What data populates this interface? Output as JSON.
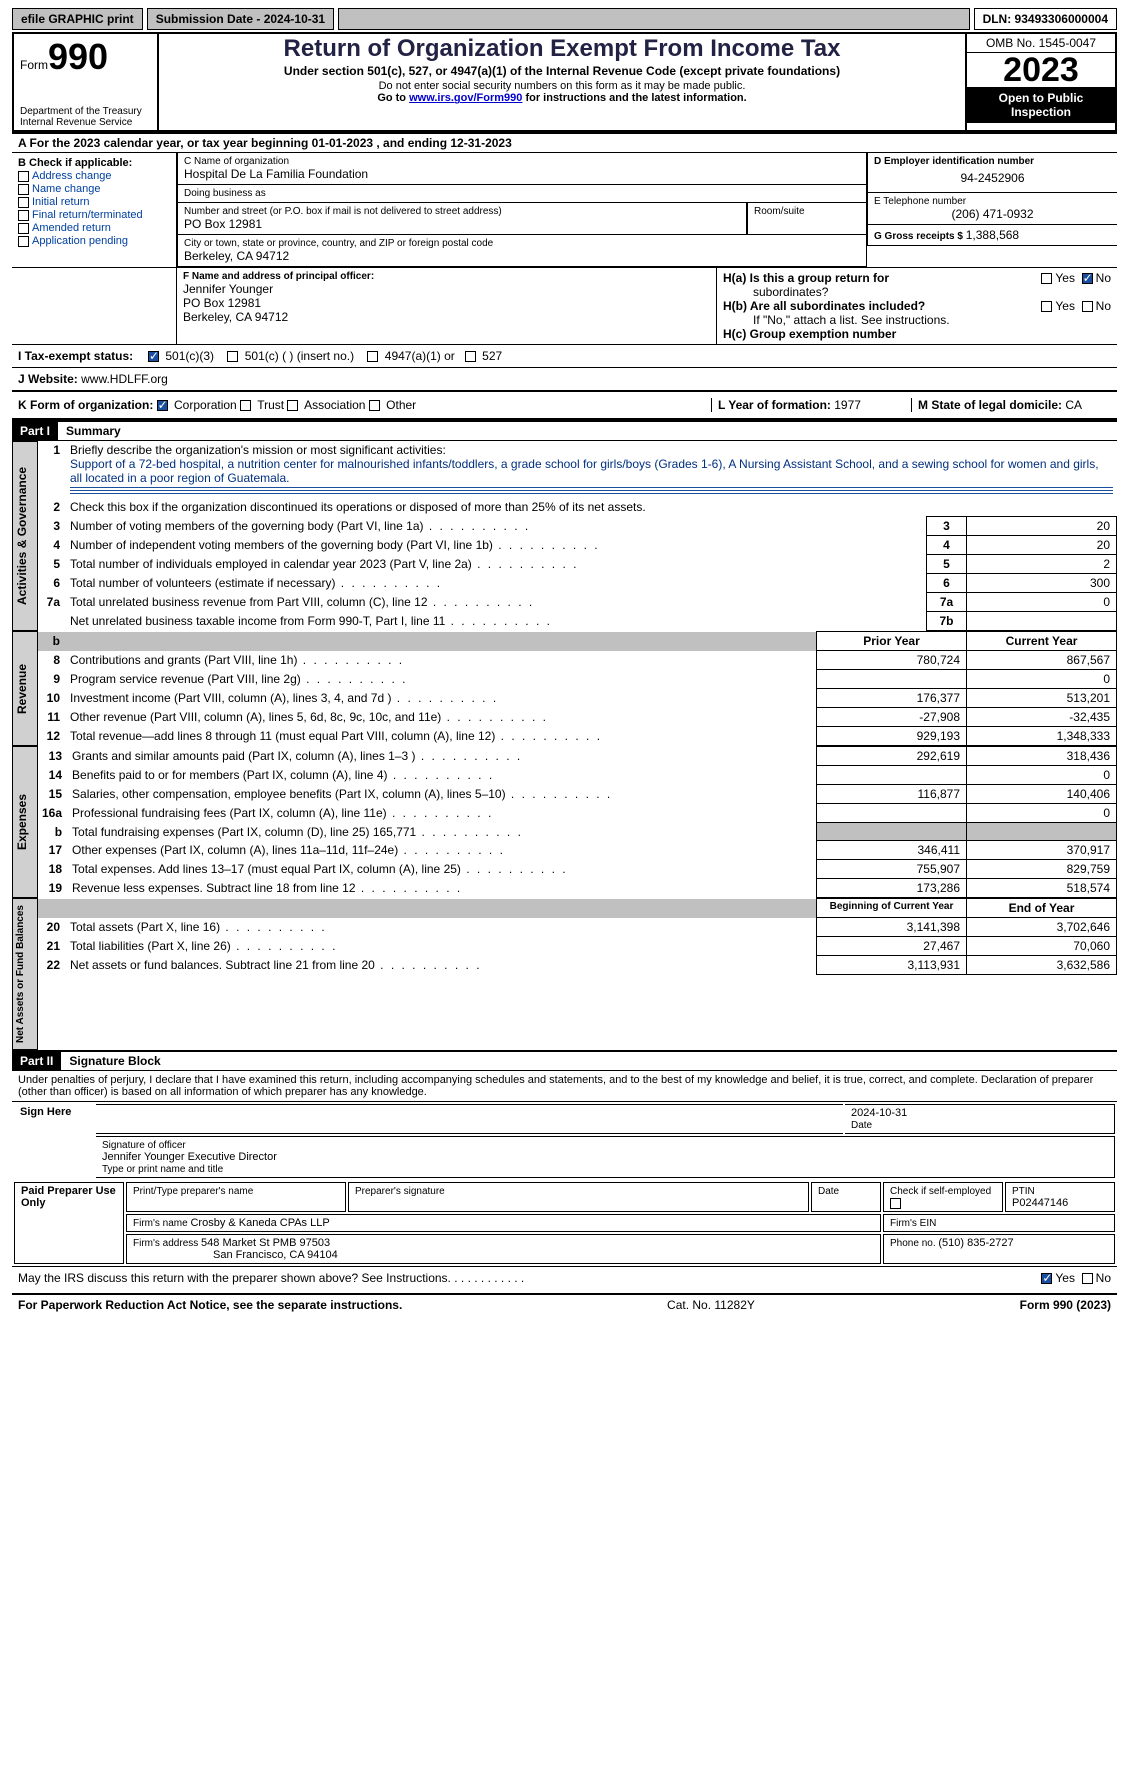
{
  "topbar": {
    "efile": "efile GRAPHIC print",
    "submission": "Submission Date - 2024-10-31",
    "dln": "DLN: 93493306000004"
  },
  "header": {
    "form_label": "Form",
    "form_no": "990",
    "dept": "Department of the Treasury",
    "irs": "Internal Revenue Service",
    "title": "Return of Organization Exempt From Income Tax",
    "subtitle": "Under section 501(c), 527, or 4947(a)(1) of the Internal Revenue Code (except private foundations)",
    "note1": "Do not enter social security numbers on this form as it may be made public.",
    "note2_pre": "Go to ",
    "note2_link": "www.irs.gov/Form990",
    "note2_post": " for instructions and the latest information.",
    "omb": "OMB No. 1545-0047",
    "year": "2023",
    "open1": "Open to Public",
    "open2": "Inspection"
  },
  "calyear": "A   For the 2023 calendar year, or tax year beginning 01-01-2023    , and ending 12-31-2023",
  "boxB": {
    "hdr": "B Check if applicable:",
    "opts": [
      "Address change",
      "Name change",
      "Initial return",
      "Final return/terminated",
      "Amended return",
      "Application pending"
    ]
  },
  "boxC": {
    "lbl_name": "C Name of organization",
    "org": "Hospital De La Familia Foundation",
    "lbl_dba": "Doing business as",
    "dba": "",
    "lbl_street": "Number and street (or P.O. box if mail is not delivered to street address)",
    "street": "PO Box 12981",
    "lbl_room": "Room/suite",
    "lbl_city": "City or town, state or province, country, and ZIP or foreign postal code",
    "city": "Berkeley, CA  94712"
  },
  "boxD": {
    "lbl": "D Employer identification number",
    "val": "94-2452906"
  },
  "boxE": {
    "lbl": "E Telephone number",
    "val": "(206) 471-0932"
  },
  "boxG": {
    "lbl": "G Gross receipts $ ",
    "val": "1,388,568"
  },
  "boxF": {
    "lbl": "F  Name and address of principal officer:",
    "l1": "Jennifer Younger",
    "l2": "PO Box 12981",
    "l3": "Berkeley, CA  94712"
  },
  "boxH": {
    "a": "H(a)  Is this a group return for",
    "a2": "subordinates?",
    "b": "H(b)  Are all subordinates included?",
    "b2": "If \"No,\" attach a list. See instructions.",
    "c": "H(c)  Group exemption number  "
  },
  "boxI": {
    "lbl": "I    Tax-exempt status:",
    "o1": "501(c)(3)",
    "o2": "501(c) (  ) (insert no.)",
    "o3": "4947(a)(1) or",
    "o4": "527"
  },
  "boxJ": {
    "lbl": "J    Website: ",
    "val": "www.HDLFF.org"
  },
  "boxK": {
    "lbl": "K Form of organization:",
    "o1": "Corporation",
    "o2": "Trust",
    "o3": "Association",
    "o4": "Other"
  },
  "boxL": {
    "lbl": "L Year of formation: ",
    "val": "1977"
  },
  "boxM": {
    "lbl": "M State of legal domicile: ",
    "val": "CA"
  },
  "part1": {
    "bar": "Part I",
    "title": "Summary"
  },
  "summary": {
    "side_ag": "Activities & Governance",
    "side_rev": "Revenue",
    "side_exp": "Expenses",
    "side_na": "Net Assets or Fund Balances",
    "l1_lbl": "Briefly describe the organization's mission or most significant activities:",
    "l1_txt": "Support of a 72-bed hospital, a nutrition center for malnourished infants/toddlers, a grade school for girls/boys (Grades 1-6), A Nursing Assistant School, and a sewing school for women and girls, all located in a poor region of Guatemala.",
    "l2": "Check this box      if the organization discontinued its operations or disposed of more than 25% of its net assets.",
    "rows_ag": [
      {
        "n": "3",
        "t": "Number of voting members of the governing body (Part VI, line 1a)",
        "rn": "3",
        "v": "20"
      },
      {
        "n": "4",
        "t": "Number of independent voting members of the governing body (Part VI, line 1b)",
        "rn": "4",
        "v": "20"
      },
      {
        "n": "5",
        "t": "Total number of individuals employed in calendar year 2023 (Part V, line 2a)",
        "rn": "5",
        "v": "2"
      },
      {
        "n": "6",
        "t": "Total number of volunteers (estimate if necessary)",
        "rn": "6",
        "v": "300"
      },
      {
        "n": "7a",
        "t": "Total unrelated business revenue from Part VIII, column (C), line 12",
        "rn": "7a",
        "v": "0"
      },
      {
        "n": "",
        "t": "Net unrelated business taxable income from Form 990-T, Part I, line 11",
        "rn": "7b",
        "v": ""
      }
    ],
    "col_prior": "Prior Year",
    "col_curr": "Current Year",
    "rows_rev": [
      {
        "n": "8",
        "t": "Contributions and grants (Part VIII, line 1h)",
        "p": "780,724",
        "c": "867,567"
      },
      {
        "n": "9",
        "t": "Program service revenue (Part VIII, line 2g)",
        "p": "",
        "c": "0"
      },
      {
        "n": "10",
        "t": "Investment income (Part VIII, column (A), lines 3, 4, and 7d )",
        "p": "176,377",
        "c": "513,201"
      },
      {
        "n": "11",
        "t": "Other revenue (Part VIII, column (A), lines 5, 6d, 8c, 9c, 10c, and 11e)",
        "p": "-27,908",
        "c": "-32,435"
      },
      {
        "n": "12",
        "t": "Total revenue—add lines 8 through 11 (must equal Part VIII, column (A), line 12)",
        "p": "929,193",
        "c": "1,348,333"
      }
    ],
    "rows_exp": [
      {
        "n": "13",
        "t": "Grants and similar amounts paid (Part IX, column (A), lines 1–3 )",
        "p": "292,619",
        "c": "318,436"
      },
      {
        "n": "14",
        "t": "Benefits paid to or for members (Part IX, column (A), line 4)",
        "p": "",
        "c": "0"
      },
      {
        "n": "15",
        "t": "Salaries, other compensation, employee benefits (Part IX, column (A), lines 5–10)",
        "p": "116,877",
        "c": "140,406"
      },
      {
        "n": "16a",
        "t": "Professional fundraising fees (Part IX, column (A), line 11e)",
        "p": "",
        "c": "0"
      },
      {
        "n": "b",
        "t": "Total fundraising expenses (Part IX, column (D), line 25) 165,771",
        "p": "GREY",
        "c": "GREY"
      },
      {
        "n": "17",
        "t": "Other expenses (Part IX, column (A), lines 11a–11d, 11f–24e)",
        "p": "346,411",
        "c": "370,917"
      },
      {
        "n": "18",
        "t": "Total expenses. Add lines 13–17 (must equal Part IX, column (A), line 25)",
        "p": "755,907",
        "c": "829,759"
      },
      {
        "n": "19",
        "t": "Revenue less expenses. Subtract line 18 from line 12",
        "p": "173,286",
        "c": "518,574"
      }
    ],
    "col_beg": "Beginning of Current Year",
    "col_end": "End of Year",
    "rows_na": [
      {
        "n": "20",
        "t": "Total assets (Part X, line 16)",
        "p": "3,141,398",
        "c": "3,702,646"
      },
      {
        "n": "21",
        "t": "Total liabilities (Part X, line 26)",
        "p": "27,467",
        "c": "70,060"
      },
      {
        "n": "22",
        "t": "Net assets or fund balances. Subtract line 21 from line 20",
        "p": "3,113,931",
        "c": "3,632,586"
      }
    ]
  },
  "part2": {
    "bar": "Part II",
    "title": "Signature Block"
  },
  "penalty": "Under penalties of perjury, I declare that I have examined this return, including accompanying schedules and statements, and to the best of my knowledge and belief, it is true, correct, and complete. Declaration of preparer (other than officer) is based on all information of which preparer has any knowledge.",
  "sign": {
    "side": "Sign Here",
    "sig_lbl": "Signature of officer",
    "officer": "Jennifer Younger  Executive Director",
    "type_lbl": "Type or print name and title",
    "date_lbl": "Date",
    "date": "2024-10-31"
  },
  "prep": {
    "side": "Paid Preparer Use Only",
    "h1": "Print/Type preparer's name",
    "h2": "Preparer's signature",
    "h3": "Date",
    "h4": "Check        if self-employed",
    "h5_lbl": "PTIN",
    "h5": "P02447146",
    "firm_lbl": "Firm's name   ",
    "firm": "Crosby & Kaneda CPAs LLP",
    "ein_lbl": "Firm's EIN  ",
    "addr_lbl": "Firm's address ",
    "addr1": "548 Market St PMB 97503",
    "addr2": "San Francisco, CA  94104",
    "phone_lbl": "Phone no. ",
    "phone": "(510) 835-2727"
  },
  "discuss": "May the IRS discuss this return with the preparer shown above? See Instructions.",
  "yes": "Yes",
  "no": "No",
  "footer": {
    "l": "For Paperwork Reduction Act Notice, see the separate instructions.",
    "m": "Cat. No. 11282Y",
    "r": "Form 990 (2023)"
  }
}
